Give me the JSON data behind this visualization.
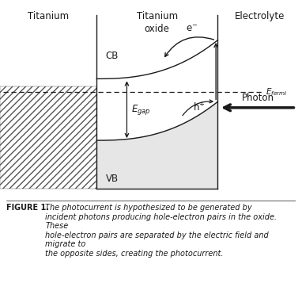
{
  "title_ti": "Titanium",
  "title_tio2": "Titanium\noxide",
  "title_electrolyte": "Electrolyte",
  "label_CB": "CB",
  "label_VB": "VB",
  "label_Egap": "$E_{gap}$",
  "label_Efermi": "$E_{fermi}$",
  "label_electron": "e$^{-}$",
  "label_hole": "h$^{+}$",
  "label_photon": "Photon",
  "fig_label": "FIGURE 1.",
  "fig_caption": "The photocurrent is hypothesized to be generated by\nincident photons producing hole-electron pairs in the oxide. These\nhole-electron pairs are separated by the electric field and migrate to\nthe opposite sides, creating the photocurrent.",
  "background_color": "#ffffff",
  "hatch_color": "#555555",
  "line_color": "#1a1a1a",
  "vb_fill_color": "#e0e0e0"
}
